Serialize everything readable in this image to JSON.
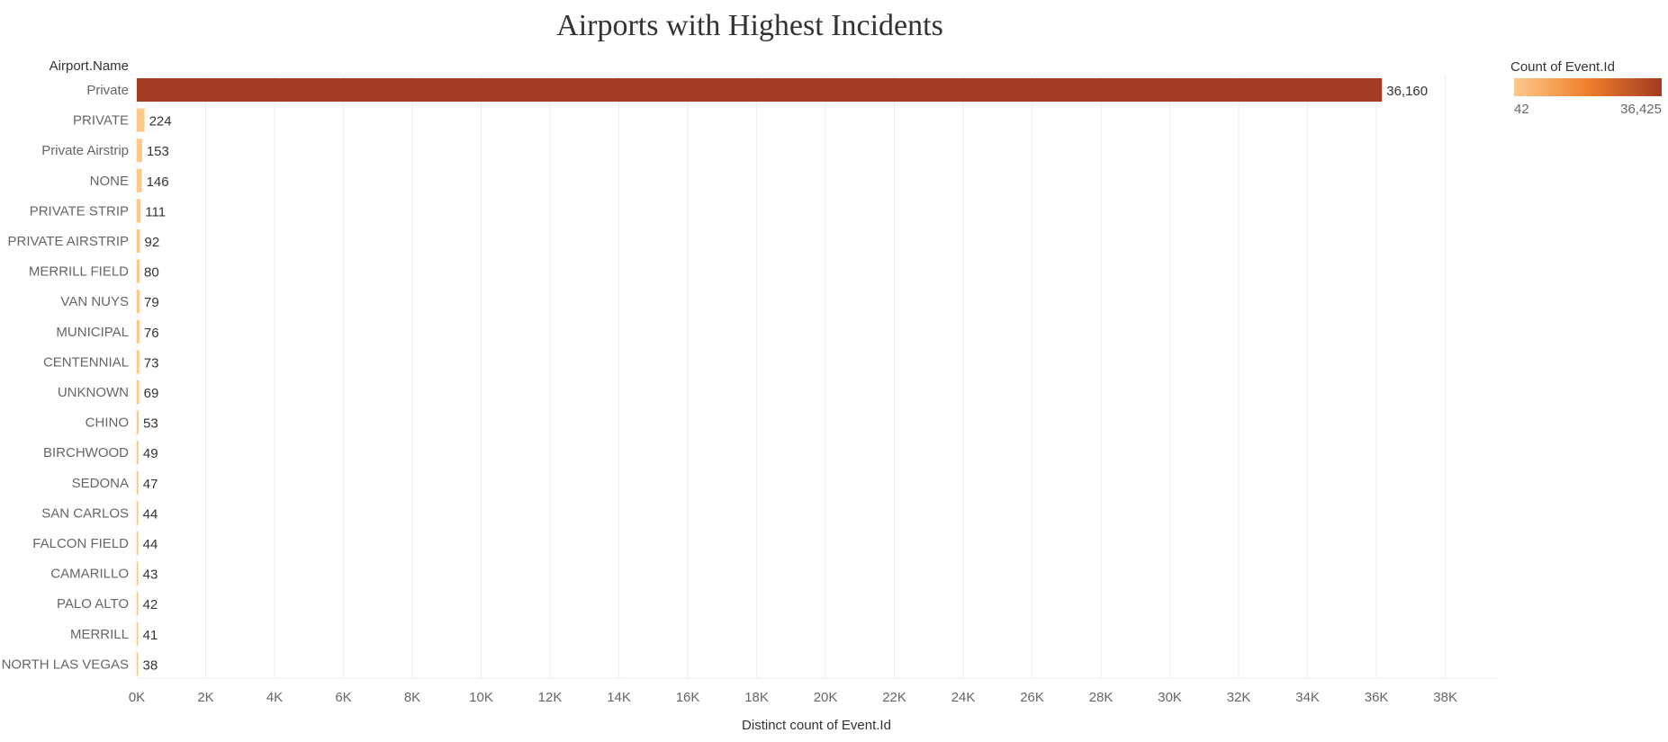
{
  "chart_data": {
    "type": "bar",
    "orientation": "horizontal",
    "title": "Airports with Highest Incidents",
    "category_header": "Airport.Name",
    "xlabel": "Distinct count of Event.Id",
    "xlim": [
      0,
      39500
    ],
    "x_ticks": [
      {
        "value": 0,
        "label": "0K"
      },
      {
        "value": 2000,
        "label": "2K"
      },
      {
        "value": 4000,
        "label": "4K"
      },
      {
        "value": 6000,
        "label": "6K"
      },
      {
        "value": 8000,
        "label": "8K"
      },
      {
        "value": 10000,
        "label": "10K"
      },
      {
        "value": 12000,
        "label": "12K"
      },
      {
        "value": 14000,
        "label": "14K"
      },
      {
        "value": 16000,
        "label": "16K"
      },
      {
        "value": 18000,
        "label": "18K"
      },
      {
        "value": 20000,
        "label": "20K"
      },
      {
        "value": 22000,
        "label": "22K"
      },
      {
        "value": 24000,
        "label": "24K"
      },
      {
        "value": 26000,
        "label": "26K"
      },
      {
        "value": 28000,
        "label": "28K"
      },
      {
        "value": 30000,
        "label": "30K"
      },
      {
        "value": 32000,
        "label": "32K"
      },
      {
        "value": 34000,
        "label": "34K"
      },
      {
        "value": 36000,
        "label": "36K"
      },
      {
        "value": 38000,
        "label": "38K"
      }
    ],
    "grid": true,
    "categories": [
      "Private",
      "PRIVATE",
      "Private Airstrip",
      "NONE",
      "PRIVATE STRIP",
      "PRIVATE AIRSTRIP",
      "MERRILL FIELD",
      "VAN NUYS",
      "MUNICIPAL",
      "CENTENNIAL",
      "UNKNOWN",
      "CHINO",
      "BIRCHWOOD",
      "SEDONA",
      "SAN CARLOS",
      "FALCON FIELD",
      "CAMARILLO",
      "PALO ALTO",
      "MERRILL",
      "NORTH LAS VEGAS"
    ],
    "values": [
      36160,
      224,
      153,
      146,
      111,
      92,
      80,
      79,
      76,
      73,
      69,
      53,
      49,
      47,
      44,
      44,
      43,
      42,
      41,
      38
    ],
    "value_labels": [
      "36,160",
      "224",
      "153",
      "146",
      "111",
      "92",
      "80",
      "79",
      "76",
      "73",
      "69",
      "53",
      "49",
      "47",
      "44",
      "44",
      "43",
      "42",
      "41",
      "38"
    ],
    "legend": {
      "title": "Count of Event.Id",
      "min": 42,
      "max": 36425,
      "min_label": "42",
      "max_label": "36,425",
      "placement": "top-right"
    },
    "colors": {
      "low": "#fdc98b",
      "mid": "#f07f2c",
      "high": "#a23b22"
    }
  }
}
